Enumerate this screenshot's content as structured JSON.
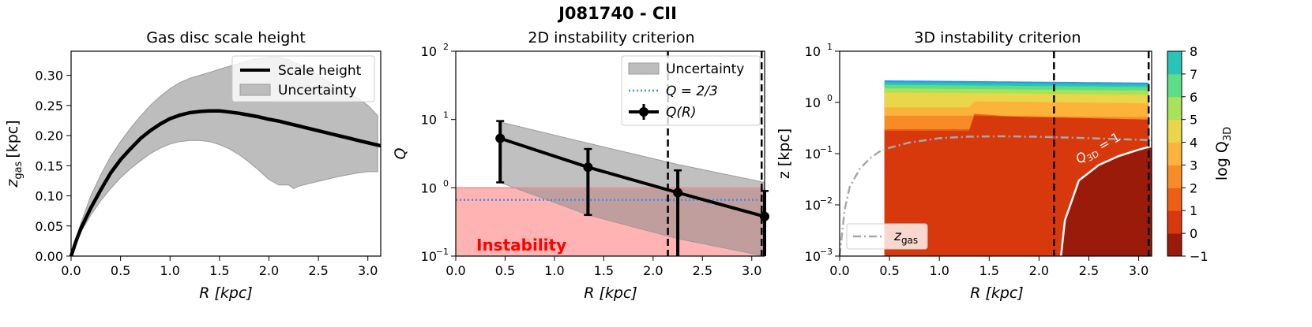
{
  "figure": {
    "title": "J081740 - CII"
  },
  "chart_data": [
    {
      "type": "line",
      "panel": "left",
      "title": "Gas disc scale height",
      "xlabel": "R [kpc]",
      "ylabel_main": "z",
      "ylabel_sub": "gas",
      "ylabel_unit": "[kpc]",
      "xlim": [
        0.0,
        3.13
      ],
      "ylim": [
        0.0,
        0.34
      ],
      "xticks": [
        0.0,
        0.5,
        1.0,
        1.5,
        2.0,
        2.5,
        3.0
      ],
      "xtick_labels": [
        "0.0",
        "0.5",
        "1.0",
        "1.5",
        "2.0",
        "2.5",
        "3.0"
      ],
      "yticks": [
        0.0,
        0.05,
        0.1,
        0.15,
        0.2,
        0.25,
        0.3
      ],
      "ytick_labels": [
        "0.00",
        "0.05",
        "0.10",
        "0.15",
        "0.20",
        "0.25",
        "0.30"
      ],
      "legend": {
        "placement": "top-right",
        "entries": [
          "Scale height",
          "Uncertainty"
        ]
      },
      "series": [
        {
          "name": "Scale height",
          "x": [
            0.0,
            0.05,
            0.1,
            0.2,
            0.3,
            0.4,
            0.5,
            0.6,
            0.7,
            0.8,
            0.9,
            1.0,
            1.1,
            1.2,
            1.3,
            1.4,
            1.5,
            1.6,
            1.7,
            1.8,
            1.9,
            2.0,
            2.1,
            2.2,
            2.3,
            2.4,
            2.5,
            2.6,
            2.7,
            2.8,
            2.9,
            3.0,
            3.13
          ],
          "y": [
            0.0,
            0.025,
            0.046,
            0.08,
            0.11,
            0.138,
            0.16,
            0.178,
            0.195,
            0.208,
            0.219,
            0.228,
            0.234,
            0.238,
            0.24,
            0.241,
            0.241,
            0.239,
            0.237,
            0.234,
            0.231,
            0.227,
            0.224,
            0.22,
            0.216,
            0.212,
            0.208,
            0.204,
            0.2,
            0.196,
            0.192,
            0.188,
            0.183
          ]
        },
        {
          "name": "Uncertainty",
          "x": [
            0.0,
            0.1,
            0.2,
            0.3,
            0.4,
            0.5,
            0.6,
            0.7,
            0.8,
            0.9,
            1.0,
            1.1,
            1.2,
            1.3,
            1.4,
            1.5,
            1.6,
            1.7,
            1.8,
            1.9,
            2.0,
            2.1,
            2.2,
            2.25,
            2.3,
            2.4,
            2.5,
            2.6,
            2.7,
            2.8,
            2.9,
            3.0,
            3.1
          ],
          "upper": [
            0.0,
            0.055,
            0.1,
            0.135,
            0.165,
            0.19,
            0.212,
            0.232,
            0.25,
            0.265,
            0.278,
            0.288,
            0.295,
            0.3,
            0.305,
            0.31,
            0.315,
            0.32,
            0.325,
            0.328,
            0.33,
            0.33,
            0.326,
            0.322,
            0.318,
            0.31,
            0.3,
            0.29,
            0.28,
            0.27,
            0.262,
            0.25,
            0.233
          ],
          "lower": [
            0.0,
            0.04,
            0.068,
            0.092,
            0.112,
            0.13,
            0.145,
            0.158,
            0.17,
            0.179,
            0.186,
            0.19,
            0.192,
            0.192,
            0.19,
            0.185,
            0.178,
            0.168,
            0.156,
            0.142,
            0.127,
            0.118,
            0.118,
            0.112,
            0.116,
            0.12,
            0.124,
            0.128,
            0.132,
            0.135,
            0.138,
            0.14,
            0.14
          ]
        }
      ]
    },
    {
      "type": "line",
      "panel": "middle",
      "title": "2D instability criterion",
      "xlabel": "R [kpc]",
      "ylabel": "Q",
      "yscale": "log",
      "xlim": [
        0.0,
        3.13
      ],
      "ylim": [
        0.1,
        100
      ],
      "xticks": [
        0.0,
        0.5,
        1.0,
        1.5,
        2.0,
        2.5,
        3.0
      ],
      "xtick_labels": [
        "0.0",
        "0.5",
        "1.0",
        "1.5",
        "2.0",
        "2.5",
        "3.0"
      ],
      "yticks": [
        0.1,
        1,
        10,
        100
      ],
      "ytick_labels": [
        "10",
        "10",
        "10",
        "10"
      ],
      "ytick_exponents": [
        "−1",
        "0",
        "1",
        "2"
      ],
      "legend": {
        "placement": "top-right",
        "entries": [
          "Uncertainty",
          "Q = 2/3",
          "Q(R)"
        ]
      },
      "reference_line": {
        "name": "Q = 2/3",
        "y": 0.667
      },
      "vertical_lines": [
        2.15,
        3.1
      ],
      "instability_region": {
        "label": "Instability",
        "y_max": 1.0
      },
      "uncertainty_band": {
        "x": [
          0.45,
          1.34,
          2.25,
          3.13
        ],
        "upper": [
          9.2,
          4.5,
          2.2,
          1.2
        ],
        "lower": [
          1.2,
          0.4,
          0.18,
          0.1
        ]
      },
      "series": [
        {
          "name": "Q(R)",
          "x": [
            0.45,
            1.34,
            2.25,
            3.13
          ],
          "y": [
            5.3,
            2.0,
            0.85,
            0.38
          ],
          "err_low": [
            1.2,
            0.4,
            0.1,
            0.1
          ],
          "err_high": [
            9.5,
            3.7,
            1.8,
            0.9
          ]
        }
      ]
    },
    {
      "type": "heatmap",
      "panel": "right",
      "title": "3D instability criterion",
      "xlabel": "R [kpc]",
      "ylabel": "z [kpc]",
      "yscale": "log",
      "xlim": [
        0.0,
        3.13
      ],
      "ylim": [
        0.001,
        10
      ],
      "xticks": [
        0.0,
        0.5,
        1.0,
        1.5,
        2.0,
        2.5,
        3.0
      ],
      "xtick_labels": [
        "0.0",
        "0.5",
        "1.0",
        "1.5",
        "2.0",
        "2.5",
        "3.0"
      ],
      "yticks": [
        0.001,
        0.01,
        0.1,
        1,
        10
      ],
      "ytick_labels": [
        "10",
        "10",
        "10",
        "10",
        "10"
      ],
      "ytick_exponents": [
        "−3",
        "−2",
        "−1",
        "0",
        "1"
      ],
      "vertical_lines": [
        2.15,
        3.1
      ],
      "contour_label": "Q3D = 1",
      "contour_label_main": "Q",
      "contour_label_sub": "3D",
      "contour_label_rest": " = 1",
      "legend": {
        "placement": "bottom-left",
        "entries": [
          "z_gas"
        ],
        "entry_main": "z",
        "entry_sub": "gas"
      },
      "z_gas_curve": {
        "x": [
          0.0,
          0.05,
          0.1,
          0.2,
          0.3,
          0.4,
          0.5,
          0.7,
          1.0,
          1.3,
          1.6,
          2.0,
          2.5,
          3.13
        ],
        "y": [
          0.001,
          0.008,
          0.022,
          0.05,
          0.08,
          0.11,
          0.13,
          0.165,
          0.2,
          0.215,
          0.218,
          0.214,
          0.2,
          0.183
        ]
      },
      "levels": [
        -1,
        0,
        1,
        2,
        3,
        4,
        5,
        6,
        7,
        8
      ],
      "level_colors": [
        "#9b1b0a",
        "#d7390d",
        "#ee5f16",
        "#f78c26",
        "#fbb33a",
        "#e9d64a",
        "#a7e259",
        "#5cde87",
        "#2ac3b8",
        "#2f96e6"
      ],
      "colorbar_label_main": "log Q",
      "colorbar_label_sub": "3D",
      "colorbar_ticks": [
        "8",
        "7",
        "6",
        "5",
        "4",
        "3",
        "2",
        "1",
        "0",
        "−1"
      ]
    }
  ]
}
